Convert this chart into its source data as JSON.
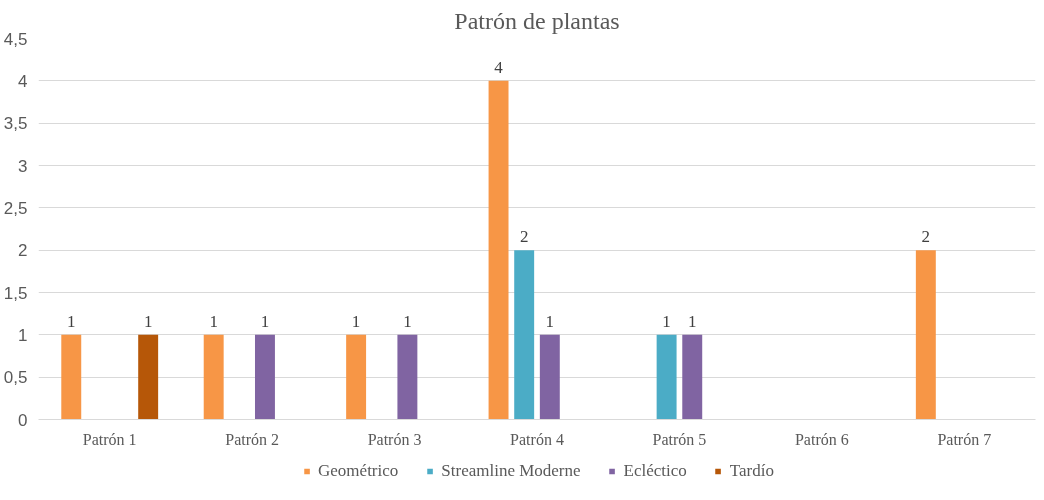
{
  "chart_data": {
    "type": "bar",
    "title": "Patrón de plantas",
    "categories": [
      "Patrón 1",
      "Patrón 2",
      "Patrón 3",
      "Patrón 4",
      "Patrón 5",
      "Patrón 6",
      "Patrón 7"
    ],
    "series": [
      {
        "name": "Geométrico",
        "color": "#f79646",
        "values": [
          1,
          1,
          1,
          4,
          null,
          null,
          2
        ]
      },
      {
        "name": "Streamline Moderne",
        "color": "#4bacc6",
        "values": [
          null,
          null,
          null,
          2,
          1,
          null,
          null
        ]
      },
      {
        "name": "Ecléctico",
        "color": "#8064a2",
        "values": [
          null,
          1,
          1,
          1,
          1,
          null,
          null
        ]
      },
      {
        "name": "Tardío",
        "color": "#b65708",
        "values": [
          1,
          null,
          null,
          null,
          null,
          null,
          null
        ]
      }
    ],
    "ylim": [
      0,
      4.5
    ],
    "yticks": [
      0,
      {
        "value": 0.5,
        "label": "0,5"
      },
      1,
      {
        "value": 1.5,
        "label": "1,5"
      },
      2,
      {
        "value": 2.5,
        "label": "2,5"
      },
      3,
      {
        "value": 3.5,
        "label": "3,5"
      },
      4,
      {
        "value": 4.5,
        "label": "4,5"
      }
    ],
    "grid": "y",
    "legend": "bottom",
    "data_labels": true
  }
}
